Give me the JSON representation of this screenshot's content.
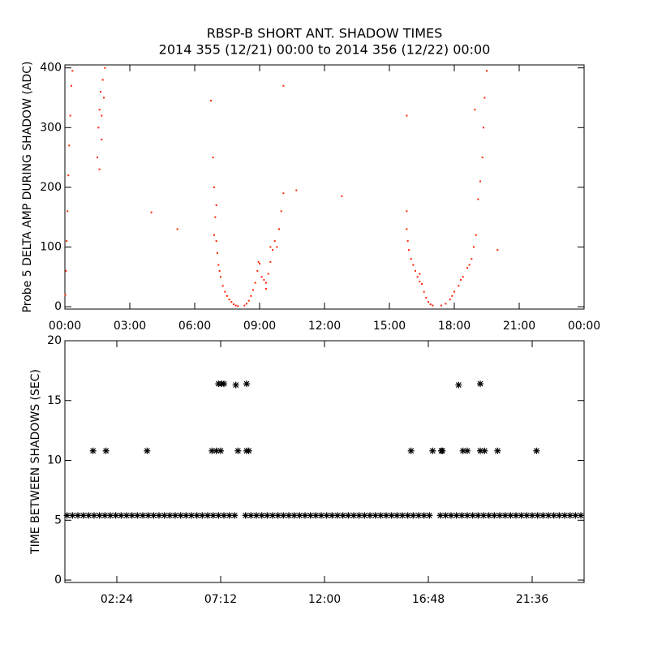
{
  "chart_data": [
    {
      "type": "scatter",
      "title": "RBSP-B SHORT ANT. SHADOW TIMES",
      "subtitle": "2014 355 (12/21) 00:00 to 2014 356 (12/22) 00:00",
      "ylabel": "Probe 5 DELTA AMP DURING SHADOW (ADC)",
      "marker": "dot",
      "color": "#ff2200",
      "xlim": [
        0,
        24
      ],
      "ylim": [
        -4,
        405
      ],
      "xticks": [
        {
          "value": 0,
          "label": "00:00"
        },
        {
          "value": 3,
          "label": "03:00"
        },
        {
          "value": 6,
          "label": "06:00"
        },
        {
          "value": 9,
          "label": "09:00"
        },
        {
          "value": 12,
          "label": "12:00"
        },
        {
          "value": 15,
          "label": "15:00"
        },
        {
          "value": 18,
          "label": "18:00"
        },
        {
          "value": 21,
          "label": "21:00"
        },
        {
          "value": 24,
          "label": "00:00"
        }
      ],
      "yticks": [
        0,
        100,
        200,
        300,
        400
      ],
      "x": [
        0.02,
        0.05,
        0.08,
        0.12,
        0.16,
        0.2,
        0.25,
        0.3,
        0.35,
        1.5,
        1.55,
        1.6,
        1.65,
        1.7,
        1.75,
        1.8,
        1.85,
        1.6,
        1.7,
        4.0,
        5.2,
        6.75,
        6.85,
        6.9,
        6.95,
        7.0,
        7.05,
        7.1,
        7.2,
        7.3,
        7.4,
        7.5,
        7.6,
        7.7,
        7.8,
        7.9,
        8.0,
        7.0,
        6.9,
        7.15,
        8.3,
        8.4,
        8.5,
        8.6,
        8.7,
        8.8,
        8.9,
        9.0,
        9.1,
        9.2,
        9.3,
        9.4,
        9.5,
        9.6,
        9.7,
        9.8,
        9.9,
        10.0,
        10.1,
        10.1,
        9.5,
        8.95,
        9.3,
        10.7,
        12.8,
        15.8,
        15.85,
        15.9,
        16.0,
        16.1,
        16.2,
        16.3,
        16.4,
        16.5,
        16.6,
        16.7,
        16.8,
        16.9,
        17.0,
        15.8,
        15.8,
        16.4,
        17.4,
        17.6,
        17.8,
        17.9,
        18.0,
        18.2,
        18.4,
        18.6,
        18.8,
        18.9,
        19.0,
        19.1,
        19.2,
        19.3,
        19.35,
        19.4,
        19.5,
        18.3,
        18.7,
        18.95,
        20.0
      ],
      "values": [
        20,
        60,
        110,
        160,
        220,
        270,
        320,
        370,
        395,
        250,
        300,
        330,
        360,
        320,
        380,
        350,
        400,
        230,
        280,
        158,
        130,
        345,
        250,
        200,
        150,
        110,
        90,
        70,
        50,
        35,
        25,
        18,
        12,
        8,
        4,
        2,
        1,
        170,
        120,
        60,
        2,
        5,
        10,
        18,
        28,
        40,
        60,
        72,
        50,
        45,
        40,
        55,
        75,
        95,
        110,
        100,
        130,
        160,
        190,
        370,
        100,
        75,
        30,
        195,
        185,
        130,
        110,
        95,
        80,
        70,
        60,
        50,
        42,
        38,
        25,
        15,
        8,
        4,
        2,
        320,
        160,
        55,
        2,
        5,
        12,
        18,
        25,
        35,
        50,
        65,
        80,
        100,
        120,
        180,
        210,
        250,
        300,
        350,
        395,
        45,
        70,
        330,
        95
      ]
    },
    {
      "type": "scatter",
      "ylabel": "TIME BETWEEN SHADOWS (SEC)",
      "marker": "asterisk",
      "color": "#000000",
      "xlim": [
        0,
        24
      ],
      "ylim": [
        -0.2,
        20
      ],
      "xticks": [
        {
          "value": 2.4,
          "label": "02:24"
        },
        {
          "value": 7.2,
          "label": "07:12"
        },
        {
          "value": 12,
          "label": "12:00"
        },
        {
          "value": 16.8,
          "label": "16:48"
        },
        {
          "value": 21.6,
          "label": "21:36"
        }
      ],
      "yticks": [
        0,
        5,
        10,
        15,
        20
      ],
      "x": [
        0.1,
        0.35,
        0.6,
        0.85,
        1.1,
        1.35,
        1.6,
        1.85,
        2.1,
        2.35,
        2.6,
        2.85,
        3.1,
        3.35,
        3.6,
        3.85,
        4.1,
        4.35,
        4.6,
        4.85,
        5.1,
        5.35,
        5.6,
        5.85,
        6.1,
        6.35,
        6.6,
        6.85,
        7.1,
        7.35,
        7.6,
        7.85,
        8.35,
        8.6,
        8.85,
        9.1,
        9.35,
        9.6,
        9.85,
        10.1,
        10.35,
        10.6,
        10.85,
        11.1,
        11.35,
        11.6,
        11.85,
        12.1,
        12.35,
        12.6,
        12.85,
        13.1,
        13.35,
        13.6,
        13.85,
        14.1,
        14.35,
        14.6,
        14.85,
        15.1,
        15.35,
        15.6,
        15.85,
        16.1,
        16.35,
        16.6,
        16.85,
        17.35,
        17.6,
        17.85,
        18.1,
        18.35,
        18.6,
        18.85,
        19.1,
        19.35,
        19.6,
        19.85,
        20.1,
        20.35,
        20.6,
        20.85,
        21.1,
        21.35,
        21.6,
        21.85,
        22.1,
        22.35,
        22.6,
        22.85,
        23.1,
        23.35,
        23.6,
        23.85,
        1.3,
        1.9,
        3.8,
        6.8,
        7.0,
        7.2,
        8.0,
        8.4,
        8.5,
        16.0,
        17.0,
        17.4,
        17.45,
        18.4,
        18.6,
        19.2,
        19.4,
        20.0,
        21.8,
        7.1,
        7.25,
        7.35,
        7.9,
        8.4,
        18.2,
        19.2
      ],
      "values": [
        5.4,
        5.4,
        5.4,
        5.4,
        5.4,
        5.4,
        5.4,
        5.4,
        5.4,
        5.4,
        5.4,
        5.4,
        5.4,
        5.4,
        5.4,
        5.4,
        5.4,
        5.4,
        5.4,
        5.4,
        5.4,
        5.4,
        5.4,
        5.4,
        5.4,
        5.4,
        5.4,
        5.4,
        5.4,
        5.4,
        5.4,
        5.4,
        5.4,
        5.4,
        5.4,
        5.4,
        5.4,
        5.4,
        5.4,
        5.4,
        5.4,
        5.4,
        5.4,
        5.4,
        5.4,
        5.4,
        5.4,
        5.4,
        5.4,
        5.4,
        5.4,
        5.4,
        5.4,
        5.4,
        5.4,
        5.4,
        5.4,
        5.4,
        5.4,
        5.4,
        5.4,
        5.4,
        5.4,
        5.4,
        5.4,
        5.4,
        5.4,
        5.4,
        5.4,
        5.4,
        5.4,
        5.4,
        5.4,
        5.4,
        5.4,
        5.4,
        5.4,
        5.4,
        5.4,
        5.4,
        5.4,
        5.4,
        5.4,
        5.4,
        5.4,
        5.4,
        5.4,
        5.4,
        5.4,
        5.4,
        5.4,
        5.4,
        5.4,
        5.4,
        10.8,
        10.8,
        10.8,
        10.8,
        10.8,
        10.8,
        10.8,
        10.8,
        10.8,
        10.8,
        10.8,
        10.8,
        10.8,
        10.8,
        10.8,
        10.8,
        10.8,
        10.8,
        10.8,
        16.4,
        16.4,
        16.4,
        16.3,
        16.4,
        16.3,
        16.4
      ]
    }
  ]
}
